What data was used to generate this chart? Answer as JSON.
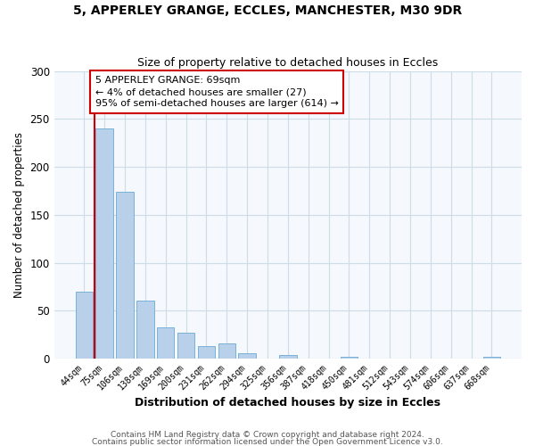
{
  "title1": "5, APPERLEY GRANGE, ECCLES, MANCHESTER, M30 9DR",
  "title2": "Size of property relative to detached houses in Eccles",
  "xlabel": "Distribution of detached houses by size in Eccles",
  "ylabel": "Number of detached properties",
  "bar_labels": [
    "44sqm",
    "75sqm",
    "106sqm",
    "138sqm",
    "169sqm",
    "200sqm",
    "231sqm",
    "262sqm",
    "294sqm",
    "325sqm",
    "356sqm",
    "387sqm",
    "418sqm",
    "450sqm",
    "481sqm",
    "512sqm",
    "543sqm",
    "574sqm",
    "606sqm",
    "637sqm",
    "668sqm"
  ],
  "bar_values": [
    70,
    240,
    174,
    61,
    33,
    27,
    13,
    16,
    6,
    0,
    4,
    0,
    0,
    2,
    0,
    0,
    0,
    0,
    0,
    0,
    2
  ],
  "bar_color": "#b8d0ea",
  "bar_edge_color": "#6aaad4",
  "vline_color": "#cc0000",
  "annotation_title": "5 APPERLEY GRANGE: 69sqm",
  "annotation_line1": "← 4% of detached houses are smaller (27)",
  "annotation_line2": "95% of semi-detached houses are larger (614) →",
  "annotation_box_color": "#cc0000",
  "ylim": [
    0,
    300
  ],
  "yticks": [
    0,
    50,
    100,
    150,
    200,
    250,
    300
  ],
  "footer1": "Contains HM Land Registry data © Crown copyright and database right 2024.",
  "footer2": "Contains public sector information licensed under the Open Government Licence v3.0.",
  "grid_color": "#ccdde8",
  "bg_color": "#f5f8fc"
}
